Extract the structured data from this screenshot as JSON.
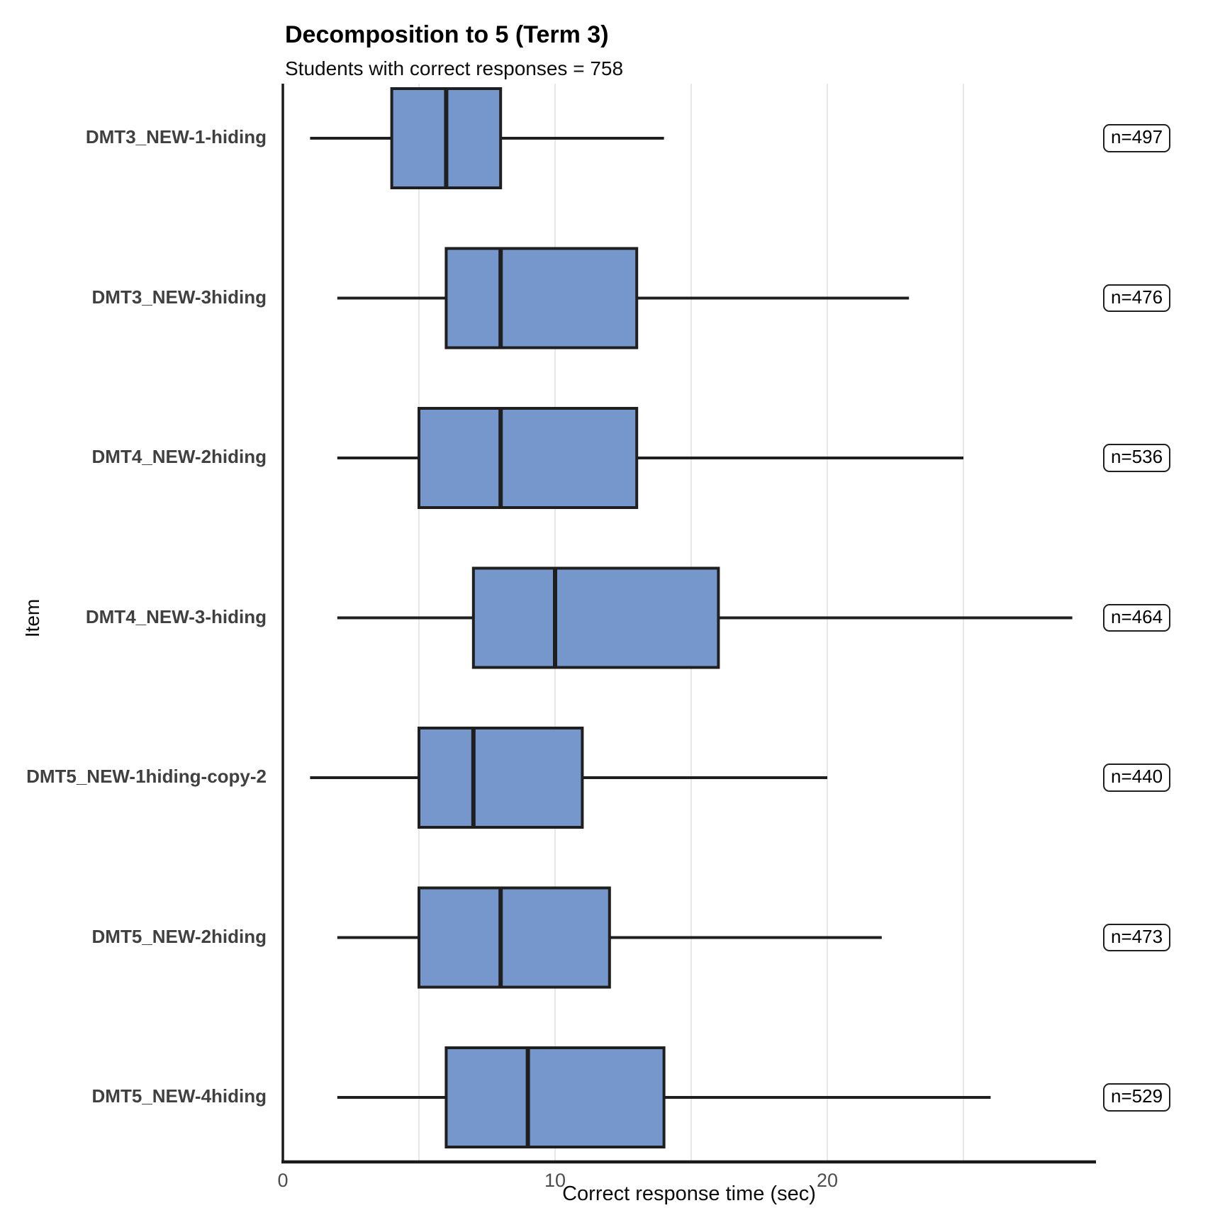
{
  "title": "Decomposition to 5 (Term 3)",
  "subtitle": "Students with correct responses = 758",
  "chart_data": {
    "type": "boxplot",
    "orientation": "horizontal",
    "title": "Decomposition to 5 (Term 3)",
    "subtitle": "Students with correct responses = 758",
    "xlabel": "Correct response time (sec)",
    "ylabel": "Item",
    "xlim": [
      0,
      29.8
    ],
    "x_ticks": [
      0,
      10,
      20
    ],
    "x_tick_labels": [
      "0",
      "10",
      "20"
    ],
    "gridlines_x": [
      5,
      10,
      15,
      20,
      25
    ],
    "legend": "none",
    "colors": {
      "box_fill": "#7697CB",
      "box_stroke": "#1F1F1F",
      "grid": "#E7E7E7",
      "axis": "#1A1A1A"
    },
    "items": [
      {
        "label": "DMT3_NEW-1-hiding",
        "n_label": "n=497",
        "n": 497,
        "min": 1,
        "q1": 4,
        "median": 6,
        "q3": 8,
        "max": 14
      },
      {
        "label": "DMT3_NEW-3hiding",
        "n_label": "n=476",
        "n": 476,
        "min": 2,
        "q1": 6,
        "median": 8,
        "q3": 13,
        "max": 23
      },
      {
        "label": "DMT4_NEW-2hiding",
        "n_label": "n=536",
        "n": 536,
        "min": 2,
        "q1": 5,
        "median": 8,
        "q3": 13,
        "max": 25
      },
      {
        "label": "DMT4_NEW-3-hiding",
        "n_label": "n=464",
        "n": 464,
        "min": 2,
        "q1": 7,
        "median": 10,
        "q3": 16,
        "max": 29
      },
      {
        "label": "DMT5_NEW-1hiding-copy-2",
        "n_label": "n=440",
        "n": 440,
        "min": 1,
        "q1": 5,
        "median": 7,
        "q3": 11,
        "max": 20
      },
      {
        "label": "DMT5_NEW-2hiding",
        "n_label": "n=473",
        "n": 473,
        "min": 2,
        "q1": 5,
        "median": 8,
        "q3": 12,
        "max": 22
      },
      {
        "label": "DMT5_NEW-4hiding",
        "n_label": "n=529",
        "n": 529,
        "min": 2,
        "q1": 6,
        "median": 9,
        "q3": 14,
        "max": 26
      }
    ]
  }
}
